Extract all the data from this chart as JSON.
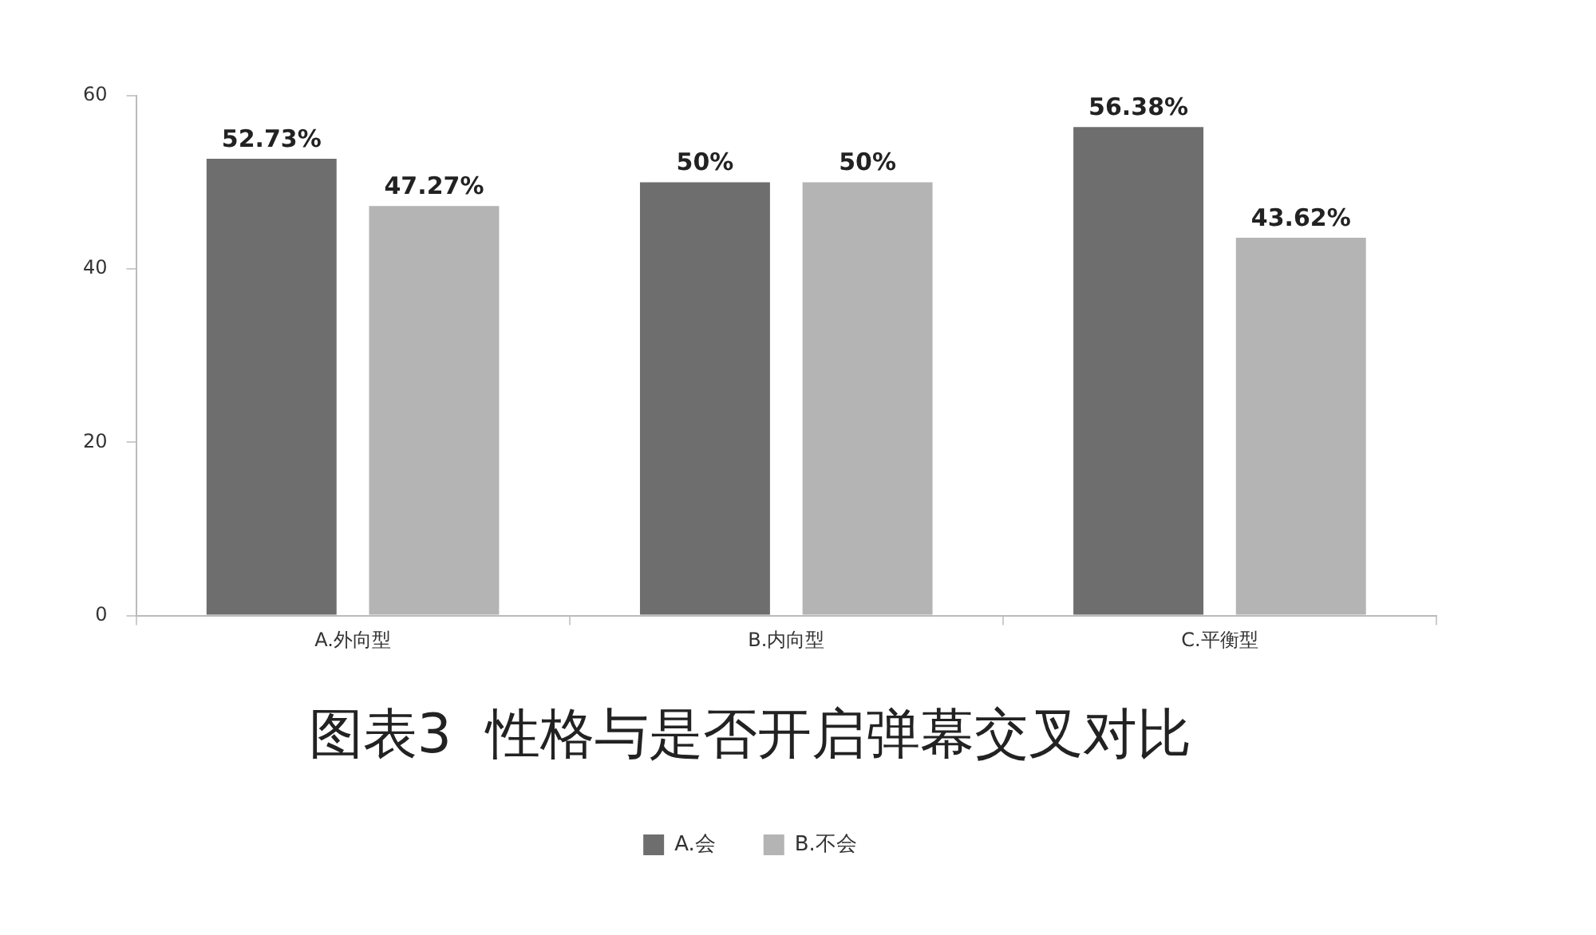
{
  "chart_data": {
    "type": "bar",
    "title": "图表3  性格与是否开启弹幕交叉对比",
    "categories": [
      "A.外向型",
      "B.内向型",
      "C.平衡型"
    ],
    "series": [
      {
        "name": "A.会",
        "color": "#6e6e6e",
        "values": [
          52.73,
          50,
          56.38
        ],
        "value_labels": [
          "52.73%",
          "50%",
          "56.38%"
        ]
      },
      {
        "name": "B.不会",
        "color": "#b4b4b4",
        "values": [
          47.27,
          50,
          43.62
        ],
        "value_labels": [
          "47.27%",
          "50%",
          "43.62%"
        ]
      }
    ],
    "ylim": [
      0,
      60
    ],
    "yticks": [
      0,
      20,
      40,
      60
    ],
    "grid": false,
    "legend": "bottom"
  }
}
